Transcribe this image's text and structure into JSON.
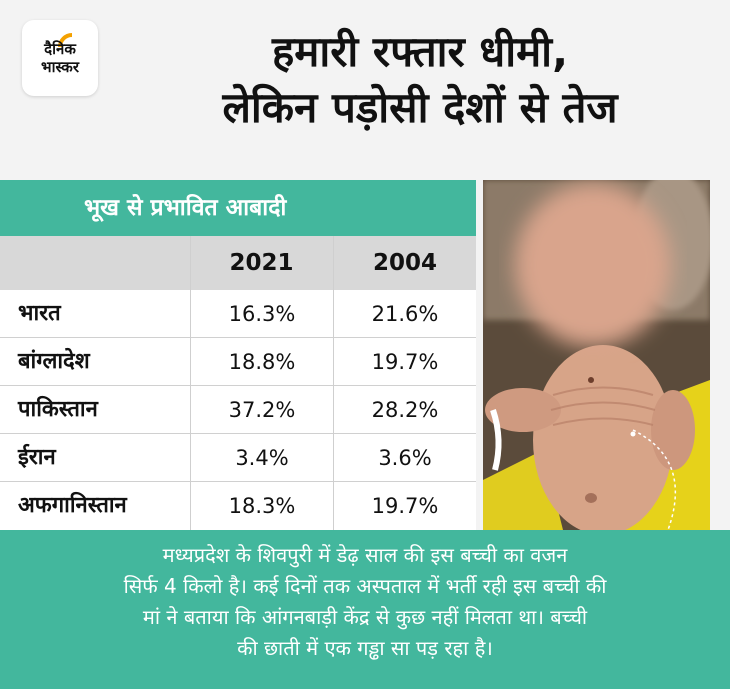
{
  "brand": {
    "line1": "दैनिक",
    "line2": "भास्कर",
    "accent": "#f4a100"
  },
  "headline": {
    "line1": "हमारी रफ्तार धीमी,",
    "line2": "लेकिन पड़ोसी देशों से तेज"
  },
  "table": {
    "title": "भूख से प्रभावित आबादी",
    "columns": [
      "2021",
      "2004"
    ],
    "rows": [
      {
        "country": "भारत",
        "v2021": "16.3%",
        "v2004": "21.6%"
      },
      {
        "country": "बांग्लादेश",
        "v2021": "18.8%",
        "v2004": "19.7%"
      },
      {
        "country": "पाकिस्तान",
        "v2021": "37.2%",
        "v2004": "28.2%"
      },
      {
        "country": "ईरान",
        "v2021": "3.4%",
        "v2004": "3.6%"
      },
      {
        "country": "अफगानिस्तान",
        "v2021": "18.3%",
        "v2004": "19.7%"
      }
    ]
  },
  "caption": {
    "line1": "मध्यप्रदेश के शिवपुरी में डेढ़ साल की इस बच्ची का वजन",
    "line2": "सिर्फ 4 किलो है। कई दिनों तक अस्पताल में भर्ती रही इस बच्ची की",
    "line3": "मां ने बताया कि आंगनबाड़ी केंद्र से कुछ नहीं मिलता था। बच्ची",
    "line4": "की छाती में एक गड्ढा सा पड़ रहा है।"
  },
  "colors": {
    "teal": "#43b79d",
    "header_gray": "#d8d8d8"
  }
}
